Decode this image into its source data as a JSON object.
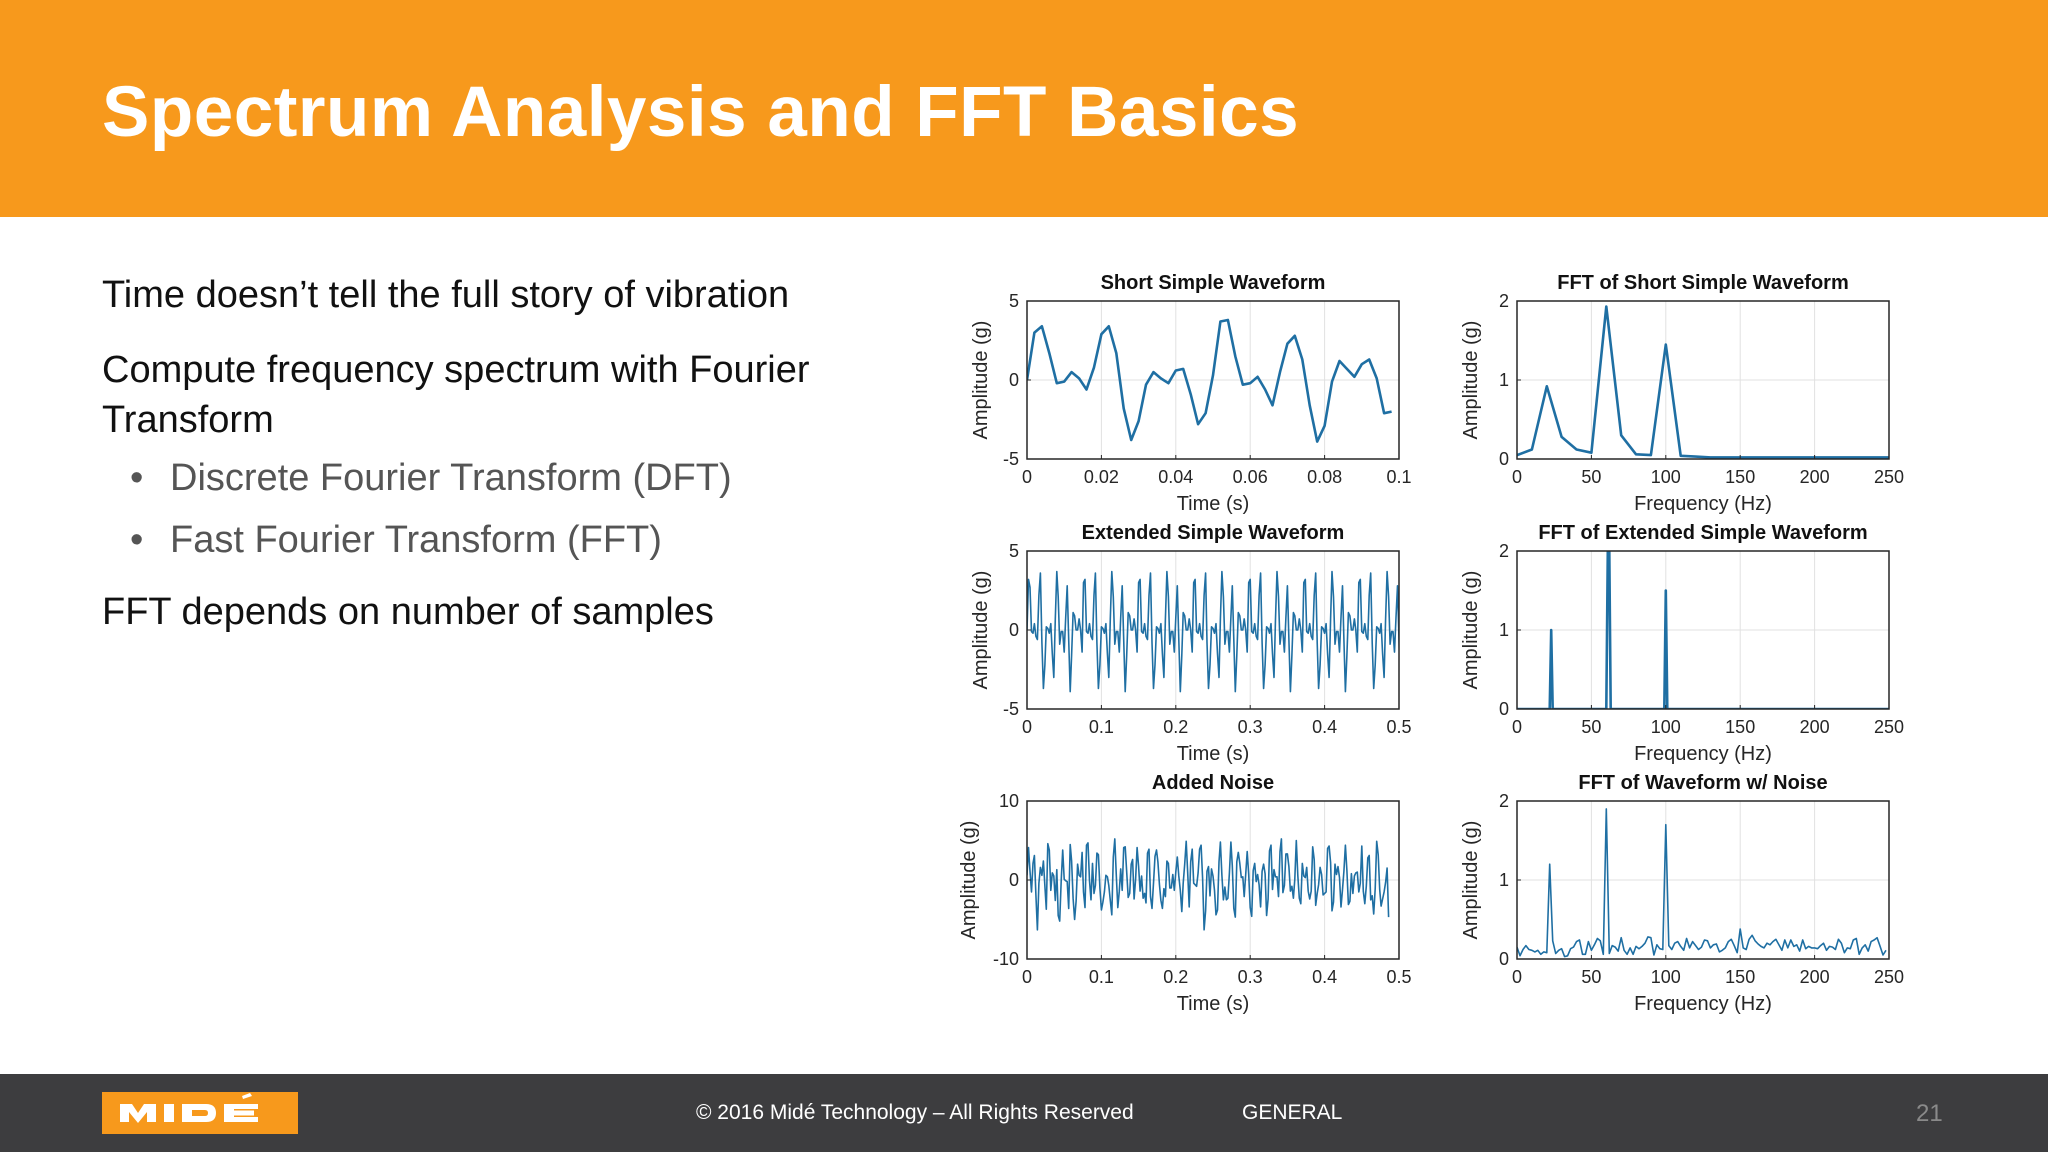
{
  "slide": {
    "title": "Spectrum Analysis and FFT Basics",
    "bullets": [
      {
        "level": 1,
        "text": "Time doesn’t tell the full story of vibration"
      },
      {
        "level": 1,
        "text": "Compute frequency spectrum with Fourier Transform"
      },
      {
        "level": 2,
        "text": "Discrete Fourier Transform (DFT)"
      },
      {
        "level": 2,
        "text": "Fast Fourier Transform (FFT)"
      },
      {
        "level": 1,
        "text": "FFT depends on number of samples"
      }
    ]
  },
  "footer": {
    "logo_text": "MIDÉ",
    "copyright": "© 2016 Midé Technology – All Rights Reserved",
    "classification": "GENERAL",
    "page_number": "21"
  },
  "colors": {
    "header": "#f7991c",
    "footer": "#3d3d3f",
    "line": "#1f6fa3"
  },
  "chart_data": [
    {
      "type": "line",
      "title": "Short Simple Waveform",
      "xlabel": "Time (s)",
      "ylabel": "Amplitude (g)",
      "xlim": [
        0,
        0.1
      ],
      "ylim": [
        -5,
        5
      ],
      "xticks": [
        0,
        0.02,
        0.04,
        0.06,
        0.08,
        0.1
      ],
      "xticklabels": [
        "0",
        "0.02",
        "0.04",
        "0.06",
        "0.08",
        "0.1"
      ],
      "yticks": [
        -5,
        0,
        5
      ],
      "yticklabels": [
        "-5",
        "0",
        "5"
      ],
      "grid": true,
      "x": [
        0,
        0.002,
        0.004,
        0.006,
        0.008,
        0.01,
        0.012,
        0.014,
        0.016,
        0.018,
        0.02,
        0.022,
        0.024,
        0.026,
        0.028,
        0.03,
        0.032,
        0.034,
        0.036,
        0.038,
        0.04,
        0.042,
        0.044,
        0.046,
        0.048,
        0.05,
        0.052,
        0.054,
        0.056,
        0.058,
        0.06,
        0.062,
        0.064,
        0.066,
        0.068,
        0.07,
        0.072,
        0.074,
        0.076,
        0.078,
        0.08,
        0.082,
        0.084,
        0.086,
        0.088,
        0.09,
        0.092,
        0.094,
        0.096,
        0.098
      ],
      "y": [
        0,
        3.0,
        3.4,
        1.7,
        -0.2,
        -0.1,
        0.5,
        0.1,
        -0.6,
        0.8,
        2.9,
        3.4,
        1.7,
        -1.8,
        -3.8,
        -2.6,
        -0.3,
        0.5,
        0.1,
        -0.2,
        0.6,
        0.7,
        -0.9,
        -2.8,
        -2.1,
        0.3,
        3.7,
        3.8,
        1.5,
        -0.3,
        -0.2,
        0.2,
        -0.6,
        -1.6,
        0.5,
        2.3,
        2.8,
        1.3,
        -1.6,
        -3.9,
        -2.9,
        -0.1,
        1.2,
        0.7,
        0.2,
        1.0,
        1.3,
        0.1,
        -2.1,
        -2.0
      ]
    },
    {
      "type": "line",
      "title": "FFT of Short Simple Waveform",
      "xlabel": "Frequency (Hz)",
      "ylabel": "Amplitude (g)",
      "xlim": [
        0,
        250
      ],
      "ylim": [
        0,
        2
      ],
      "xticks": [
        0,
        50,
        100,
        150,
        200,
        250
      ],
      "xticklabels": [
        "0",
        "50",
        "100",
        "150",
        "200",
        "250"
      ],
      "yticks": [
        0,
        1,
        2
      ],
      "yticklabels": [
        "0",
        "1",
        "2"
      ],
      "grid": true,
      "x": [
        0,
        10,
        20,
        30,
        40,
        50,
        60,
        70,
        80,
        90,
        100,
        110,
        120,
        130,
        140,
        150,
        160,
        170,
        180,
        190,
        200,
        210,
        220,
        230,
        240,
        250
      ],
      "y": [
        0.05,
        0.12,
        0.92,
        0.28,
        0.12,
        0.08,
        1.93,
        0.3,
        0.06,
        0.05,
        1.45,
        0.04,
        0.03,
        0.02,
        0.02,
        0.02,
        0.02,
        0.02,
        0.02,
        0.02,
        0.02,
        0.02,
        0.02,
        0.02,
        0.02,
        0.02
      ]
    },
    {
      "type": "line",
      "title": "Extended Simple Waveform",
      "xlabel": "Time (s)",
      "ylabel": "Amplitude (g)",
      "xlim": [
        0,
        0.5
      ],
      "ylim": [
        -5,
        5
      ],
      "xticks": [
        0,
        0.1,
        0.2,
        0.3,
        0.4,
        0.5
      ],
      "xticklabels": [
        "0",
        "0.1",
        "0.2",
        "0.3",
        "0.4",
        "0.5"
      ],
      "yticks": [
        -5,
        0,
        5
      ],
      "yticklabels": [
        "-5",
        "0",
        "5"
      ],
      "grid": true,
      "x_start": 0,
      "x_step": 0.002,
      "y": [
        0.0,
        3.2,
        2.7,
        -0.1,
        -0.2,
        0.4,
        -0.4,
        -0.6,
        2.2,
        3.6,
        -0.8,
        -3.7,
        -2.2,
        0.2,
        0.1,
        -0.2,
        0.4,
        -1.5,
        -3.0,
        0.7,
        3.7,
        2.1,
        -0.9,
        -0.1,
        -0.1,
        -1.4,
        0.8,
        2.8,
        -0.6,
        -3.9,
        -1.6,
        1.1,
        0.9,
        0.0,
        0.0,
        0.7,
        0.0,
        -1.4,
        3.0,
        3.2,
        -0.1,
        -0.2,
        0.4,
        -0.4,
        -0.6,
        2.2,
        3.6,
        -0.8,
        -3.7,
        -2.2,
        0.2,
        0.1,
        -0.2,
        0.4,
        -1.5,
        -3.0,
        0.7,
        3.7,
        2.1,
        -0.9,
        -0.1,
        -0.1,
        -1.4,
        0.8,
        2.8,
        -0.6,
        -3.9,
        -1.6,
        1.1,
        0.9,
        0.0,
        0.0,
        0.7,
        0.0,
        -1.4,
        3.0,
        3.2,
        -0.1,
        -0.2,
        0.4,
        -0.4,
        -0.6,
        2.2,
        3.6,
        -0.8,
        -3.7,
        -2.2,
        0.2,
        0.1,
        -0.2,
        0.4,
        -1.5,
        -3.0,
        0.7,
        3.7,
        2.1,
        -0.9,
        -0.1,
        -0.1,
        -1.4,
        0.8,
        2.8,
        -0.6,
        -3.9,
        -1.6,
        1.1,
        0.9,
        0.0,
        0.0,
        0.7,
        0.0,
        -1.4,
        3.0,
        3.2,
        -0.1,
        -0.2,
        0.4,
        -0.4,
        -0.6,
        2.2,
        3.6,
        -0.8,
        -3.7,
        -2.2,
        0.2,
        0.1,
        -0.2,
        0.4,
        -1.5,
        -3.0,
        0.7,
        3.7,
        2.1,
        -0.9,
        -0.1,
        -0.1,
        -1.4,
        0.8,
        2.8,
        -0.6,
        -3.9,
        -1.6,
        1.1,
        0.9,
        0.0,
        0.0,
        0.7,
        0.0,
        -1.4,
        3.0,
        3.2,
        -0.1,
        -0.2,
        0.4,
        -0.4,
        -0.6,
        2.2,
        3.6,
        -0.8,
        -3.7,
        -2.2,
        0.2,
        0.1,
        -0.2,
        0.4,
        -1.5,
        -3.0,
        0.7,
        3.7,
        2.1,
        -0.9,
        -0.1,
        -0.1,
        -1.4,
        0.8,
        2.8,
        -0.6,
        -3.9,
        -1.6,
        1.1,
        0.9,
        0.0,
        0.0,
        0.7,
        0.0,
        -1.4,
        3.0,
        3.2,
        -0.1,
        -0.2,
        0.4,
        -0.4,
        -0.6,
        2.2,
        3.6,
        -0.8,
        -3.7,
        -2.2,
        0.2,
        0.1,
        -0.2,
        0.4,
        -1.5,
        -3.0,
        0.7,
        3.7,
        2.1,
        -0.9,
        -0.1,
        -0.1,
        -1.4,
        0.8,
        2.8,
        -0.6,
        -3.9,
        -1.6,
        1.1,
        0.9,
        0.0,
        0.0,
        0.7,
        0.0,
        -1.4,
        3.0,
        3.2,
        -0.1,
        -0.2,
        0.4,
        -0.4,
        -0.6,
        2.2,
        3.6,
        -0.8,
        -3.7,
        -2.2,
        0.2,
        0.1,
        -0.2,
        0.4,
        -1.5,
        -3.0,
        0.7,
        3.7,
        2.1,
        -0.9,
        -0.1,
        -0.1,
        -1.4,
        0.8,
        2.8,
        -0.6,
        -3.9,
        -1.6,
        1.1,
        0.9,
        0.0,
        0.0,
        0.7,
        0.0,
        -1.4,
        3.0,
        3.2,
        -0.1,
        -0.2,
        0.4,
        -0.4,
        -0.6,
        2.2,
        3.6,
        -0.8,
        -3.7,
        -2.2,
        0.2,
        0.1
      ]
    },
    {
      "type": "line",
      "title": "FFT of Extended Simple Waveform",
      "xlabel": "Frequency (Hz)",
      "ylabel": "Amplitude (g)",
      "xlim": [
        0,
        250
      ],
      "ylim": [
        0,
        2
      ],
      "xticks": [
        0,
        50,
        100,
        150,
        200,
        250
      ],
      "xticklabels": [
        "0",
        "50",
        "100",
        "150",
        "200",
        "250"
      ],
      "yticks": [
        0,
        1,
        2
      ],
      "yticklabels": [
        "0",
        "1",
        "2"
      ],
      "grid": true,
      "x": [
        0,
        22,
        23,
        24,
        25,
        26,
        60,
        61,
        62,
        63,
        64,
        99,
        100,
        101,
        102,
        103,
        250
      ],
      "y": [
        0,
        0,
        1.0,
        0.0,
        0,
        0,
        0,
        2.0,
        2.0,
        0,
        0,
        0,
        1.5,
        0.0,
        0,
        0,
        0
      ]
    },
    {
      "type": "line",
      "title": "Added Noise",
      "xlabel": "Time (s)",
      "ylabel": "Amplitude (g)",
      "xlim": [
        0,
        0.5
      ],
      "ylim": [
        -10,
        10
      ],
      "xticks": [
        0,
        0.1,
        0.2,
        0.3,
        0.4,
        0.5
      ],
      "xticklabels": [
        "0",
        "0.1",
        "0.2",
        "0.3",
        "0.4",
        "0.5"
      ],
      "yticks": [
        -10,
        0,
        10
      ],
      "yticklabels": [
        "-10",
        "0",
        "10"
      ],
      "grid": true,
      "x_start": 0,
      "x_step": 0.002,
      "y": [
        0.6,
        4.1,
        1.1,
        -1.5,
        2.1,
        3.1,
        -1.9,
        -6.3,
        -0.4,
        1.6,
        0.6,
        2.4,
        -0.8,
        -3.7,
        4.6,
        3.8,
        -1.3,
        0.9,
        0.5,
        -2.6,
        1.3,
        -4.5,
        -5.2,
        -0.1,
        3.8,
        0.1,
        -0.1,
        -0.2,
        -3.6,
        4.5,
        2.4,
        -2.3,
        -5.0,
        -2.7,
        2.0,
        0.6,
        0.4,
        3.5,
        -1.5,
        -3.5,
        4.4,
        4.7,
        -0.1,
        -2.5,
        2.1,
        -1.7,
        -0.7,
        3.4,
        3.2,
        -1.0,
        -3.8,
        -2.8,
        -1.5,
        0.6,
        0.4,
        -0.7,
        -2.6,
        -4.4,
        2.9,
        5.2,
        0.6,
        -3.5,
        -1.4,
        1.4,
        -1.3,
        4.1,
        4.2,
        1.0,
        -2.2,
        -1.7,
        2.0,
        2.6,
        -2.4,
        0.1,
        4.1,
        1.7,
        -1.4,
        0.5,
        -2.3,
        -1.7,
        -2.9,
        3.4,
        3.9,
        -2.1,
        -3.6,
        -0.4,
        3.0,
        3.8,
        2.3,
        -0.5,
        -2.6,
        -3.6,
        -1.1,
        -2.1,
        2.4,
        2.1,
        -1.0,
        -1.0,
        0.7,
        -1.3,
        1.0,
        2.9,
        0.5,
        -1.3,
        -4.0,
        -0.4,
        2.0,
        4.9,
        0.9,
        -3.4,
        2.3,
        3.9,
        -0.4,
        -0.6,
        -0.8,
        0.9,
        3.9,
        4.4,
        0.2,
        -6.3,
        -3.9,
        1.1,
        1.7,
        -2.0,
        1.4,
        0.5,
        -1.3,
        -4.4,
        -3.8,
        2.3,
        4.8,
        0.6,
        -2.5,
        -0.9,
        -2.5,
        -2.3,
        0.9,
        4.8,
        1.8,
        -3.6,
        -4.7,
        2.3,
        3.5,
        2.1,
        0.3,
        0.4,
        -2.1,
        0.7,
        3.6,
        0.7,
        -3.5,
        -4.6,
        1.2,
        2.1,
        -0.2,
        0.7,
        -0.6,
        -3.4,
        1.1,
        2.0,
        0.8,
        -4.5,
        -2.4,
        3.7,
        4.4,
        -1.2,
        1.3,
        0.4,
        0.4,
        -2.1,
        3.6,
        5.2,
        -1.6,
        -0.7,
        3.3,
        3.3,
        1.7,
        -1.4,
        -0.8,
        -2.3,
        0.1,
        5.0,
        0.6,
        -2.3,
        -3.0,
        2.1,
        0.5,
        0.3,
        1.6,
        -1.4,
        -2.4,
        -1.4,
        4.2,
        2.6,
        -3.2,
        -1.7,
        -0.6,
        1.6,
        0.7,
        -1.9,
        -1.7,
        -1.5,
        4.0,
        4.3,
        2.2,
        -3.9,
        -2.8,
        2.0,
        0.7,
        1.7,
        0.3,
        -3.4,
        -1.2,
        1.1,
        4.4,
        1.2,
        -3.1,
        -2.7,
        0.8,
        -1.7,
        0.5,
        0.9,
        1.0,
        -1.5,
        -0.4,
        4.3,
        -1.4,
        -3.0,
        -0.8,
        2.8,
        3.1,
        -2.5,
        -2.0,
        -4.3,
        -1.1,
        4.9,
        3.2,
        -1.2,
        -3.3,
        -2.4,
        -1.5,
        -0.3,
        1.5,
        -4.7
      ]
    },
    {
      "type": "line",
      "title": "FFT of Waveform w/ Noise",
      "xlabel": "Frequency (Hz)",
      "ylabel": "Amplitude (g)",
      "xlim": [
        0,
        250
      ],
      "ylim": [
        0,
        2
      ],
      "xticks": [
        0,
        50,
        100,
        150,
        200,
        250
      ],
      "xticklabels": [
        "0",
        "50",
        "100",
        "150",
        "200",
        "250"
      ],
      "yticks": [
        0,
        1,
        2
      ],
      "yticklabels": [
        "0",
        "1",
        "2"
      ],
      "grid": true,
      "x_start": 0,
      "x_step": 2,
      "y": [
        0.15,
        0.04,
        0.12,
        0.17,
        0.12,
        0.11,
        0.09,
        0.11,
        0.06,
        0.09,
        0.08,
        1.2,
        0.23,
        0.07,
        0.11,
        0.13,
        0.03,
        0.04,
        0.13,
        0.15,
        0.22,
        0.24,
        0.06,
        0.06,
        0.22,
        0.11,
        0.18,
        0.26,
        0.23,
        0.06,
        1.9,
        0.07,
        0.17,
        0.15,
        0.1,
        0.27,
        0.11,
        0.06,
        0.14,
        0.06,
        0.16,
        0.13,
        0.16,
        0.2,
        0.28,
        0.27,
        0.05,
        0.18,
        0.13,
        0.12,
        1.7,
        0.17,
        0.12,
        0.2,
        0.22,
        0.16,
        0.11,
        0.26,
        0.14,
        0.22,
        0.17,
        0.12,
        0.15,
        0.24,
        0.23,
        0.14,
        0.18,
        0.19,
        0.09,
        0.11,
        0.14,
        0.22,
        0.25,
        0.17,
        0.08,
        0.38,
        0.14,
        0.12,
        0.25,
        0.3,
        0.23,
        0.19,
        0.16,
        0.14,
        0.2,
        0.18,
        0.22,
        0.25,
        0.18,
        0.11,
        0.24,
        0.14,
        0.24,
        0.16,
        0.18,
        0.1,
        0.24,
        0.13,
        0.16,
        0.14,
        0.14,
        0.13,
        0.17,
        0.2,
        0.11,
        0.16,
        0.15,
        0.12,
        0.25,
        0.2,
        0.08,
        0.14,
        0.13,
        0.24,
        0.26,
        0.06,
        0.14,
        0.18,
        0.1,
        0.22,
        0.24,
        0.27,
        0.16,
        0.05,
        0.11
      ]
    }
  ]
}
